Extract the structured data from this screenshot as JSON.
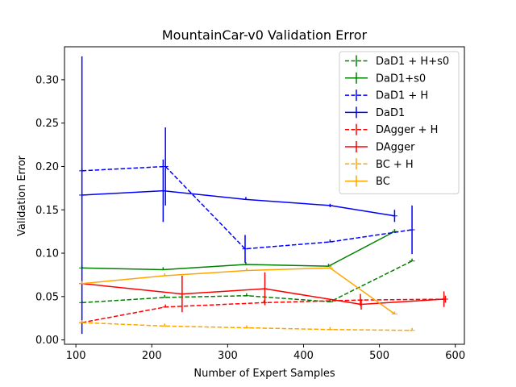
{
  "chart_data": {
    "type": "line",
    "title": "MountainCar-v0 Validation Error",
    "xlabel": "Number of Expert Samples",
    "ylabel": "Validation Error",
    "xlim": [
      85,
      612
    ],
    "ylim": [
      -0.005,
      0.338
    ],
    "xticks": [
      100,
      200,
      300,
      400,
      500,
      600
    ],
    "yticks": [
      0.0,
      0.05,
      0.1,
      0.15,
      0.2,
      0.25,
      0.3
    ],
    "ytick_labels": [
      "0.00",
      "0.05",
      "0.10",
      "0.15",
      "0.20",
      "0.25",
      "0.30"
    ],
    "grid": false,
    "legend_position": "top-right",
    "series": [
      {
        "name": "DaD1 + H+s0",
        "color": "#008000",
        "dashed": true,
        "points": [
          {
            "x": 108,
            "y": 0.043,
            "err": 0.0
          },
          {
            "x": 217,
            "y": 0.049,
            "err": 0.0
          },
          {
            "x": 325,
            "y": 0.051,
            "err": 0.0
          },
          {
            "x": 435,
            "y": 0.044,
            "err": 0.0
          },
          {
            "x": 543,
            "y": 0.091,
            "err": 0.0
          }
        ]
      },
      {
        "name": "DaD1+s0",
        "color": "#008000",
        "dashed": false,
        "points": [
          {
            "x": 108,
            "y": 0.083,
            "err": 0.0
          },
          {
            "x": 215,
            "y": 0.081,
            "err": 0.0
          },
          {
            "x": 324,
            "y": 0.087,
            "err": 0.0
          },
          {
            "x": 433,
            "y": 0.085,
            "err": 0.0
          },
          {
            "x": 520,
            "y": 0.125,
            "err": 0.0
          }
        ]
      },
      {
        "name": "DaD1 + H",
        "color": "#0000ff",
        "dashed": true,
        "points": [
          {
            "x": 108,
            "y": 0.195,
            "err": 0.0
          },
          {
            "x": 218,
            "y": 0.2,
            "err": 0.045
          },
          {
            "x": 323,
            "y": 0.105,
            "err": 0.016
          },
          {
            "x": 435,
            "y": 0.113,
            "err": 0.0
          },
          {
            "x": 543,
            "y": 0.127,
            "err": 0.028
          }
        ]
      },
      {
        "name": "DaD1",
        "color": "#0000ff",
        "dashed": false,
        "points": [
          {
            "x": 108,
            "y": 0.167,
            "err": 0.16
          },
          {
            "x": 215,
            "y": 0.172,
            "err": 0.036
          },
          {
            "x": 324,
            "y": 0.162,
            "err": 0.0
          },
          {
            "x": 435,
            "y": 0.155,
            "err": 0.002
          },
          {
            "x": 520,
            "y": 0.143,
            "err": 0.007
          }
        ]
      },
      {
        "name": "DAgger + H",
        "color": "#ff0000",
        "dashed": true,
        "points": [
          {
            "x": 108,
            "y": 0.02,
            "err": 0.0
          },
          {
            "x": 218,
            "y": 0.038,
            "err": 0.0
          },
          {
            "x": 348,
            "y": 0.043,
            "err": 0.0
          },
          {
            "x": 475,
            "y": 0.046,
            "err": 0.007
          },
          {
            "x": 587,
            "y": 0.047,
            "err": 0.004
          }
        ]
      },
      {
        "name": "DAgger",
        "color": "#ff0000",
        "dashed": false,
        "points": [
          {
            "x": 108,
            "y": 0.065,
            "err": 0.0
          },
          {
            "x": 240,
            "y": 0.053,
            "err": 0.021
          },
          {
            "x": 349,
            "y": 0.059,
            "err": 0.019
          },
          {
            "x": 476,
            "y": 0.041,
            "err": 0.006
          },
          {
            "x": 585,
            "y": 0.047,
            "err": 0.009
          }
        ]
      },
      {
        "name": "BC + H",
        "color": "#ffa500",
        "dashed": true,
        "points": [
          {
            "x": 108,
            "y": 0.02,
            "err": 0.0
          },
          {
            "x": 217,
            "y": 0.016,
            "err": 0.0
          },
          {
            "x": 325,
            "y": 0.014,
            "err": 0.0
          },
          {
            "x": 435,
            "y": 0.012,
            "err": 0.0
          },
          {
            "x": 543,
            "y": 0.011,
            "err": 0.0
          }
        ]
      },
      {
        "name": "BC",
        "color": "#ffa500",
        "dashed": false,
        "points": [
          {
            "x": 108,
            "y": 0.065,
            "err": 0.0
          },
          {
            "x": 217,
            "y": 0.074,
            "err": 0.0
          },
          {
            "x": 325,
            "y": 0.08,
            "err": 0.0
          },
          {
            "x": 435,
            "y": 0.083,
            "err": 0.0
          },
          {
            "x": 520,
            "y": 0.03,
            "err": 0.0
          }
        ]
      }
    ]
  }
}
